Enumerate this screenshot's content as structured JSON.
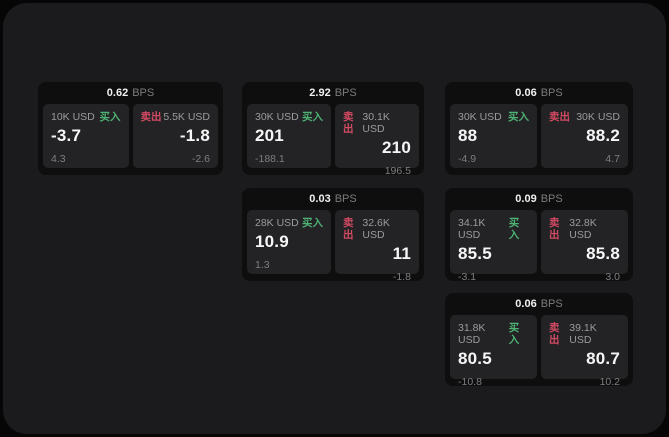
{
  "labels": {
    "bps": "BPS",
    "buy": "买入",
    "sell": "卖出"
  },
  "colors": {
    "panel_background": "#1b1b1d",
    "card_background": "#0e0e0f",
    "tile_background": "#232325",
    "buy_green": "#4db274",
    "sell_red": "#d34a63",
    "text_primary": "#f6f6f6",
    "text_secondary": "#8b8b8d"
  },
  "cards": [
    {
      "grid": {
        "row": 1,
        "col": 1
      },
      "bps": "0.62",
      "buy": {
        "size": "10K USD",
        "value": "-3.7",
        "sub": "4.3"
      },
      "sell": {
        "size": "5.5K USD",
        "value": "-1.8",
        "sub": "-2.6"
      }
    },
    {
      "grid": {
        "row": 1,
        "col": 2
      },
      "bps": "2.92",
      "buy": {
        "size": "30K USD",
        "value": "201",
        "sub": "-188.1"
      },
      "sell": {
        "size": "30.1K USD",
        "value": "210",
        "sub": "196.5"
      }
    },
    {
      "grid": {
        "row": 1,
        "col": 3
      },
      "bps": "0.06",
      "buy": {
        "size": "30K USD",
        "value": "88",
        "sub": "-4.9"
      },
      "sell": {
        "size": "30K USD",
        "value": "88.2",
        "sub": "4.7"
      }
    },
    {
      "grid": {
        "row": 2,
        "col": 2
      },
      "bps": "0.03",
      "buy": {
        "size": "28K USD",
        "value": "10.9",
        "sub": "1.3"
      },
      "sell": {
        "size": "32.6K USD",
        "value": "11",
        "sub": "-1.8"
      }
    },
    {
      "grid": {
        "row": 2,
        "col": 3
      },
      "bps": "0.09",
      "buy": {
        "size": "34.1K USD",
        "value": "85.5",
        "sub": "-3.1"
      },
      "sell": {
        "size": "32.8K USD",
        "value": "85.8",
        "sub": "3.0"
      }
    },
    {
      "grid": {
        "row": 3,
        "col": 3
      },
      "bps": "0.06",
      "buy": {
        "size": "31.8K USD",
        "value": "80.5",
        "sub": "-10.8"
      },
      "sell": {
        "size": "39.1K USD",
        "value": "80.7",
        "sub": "10.2"
      }
    }
  ]
}
